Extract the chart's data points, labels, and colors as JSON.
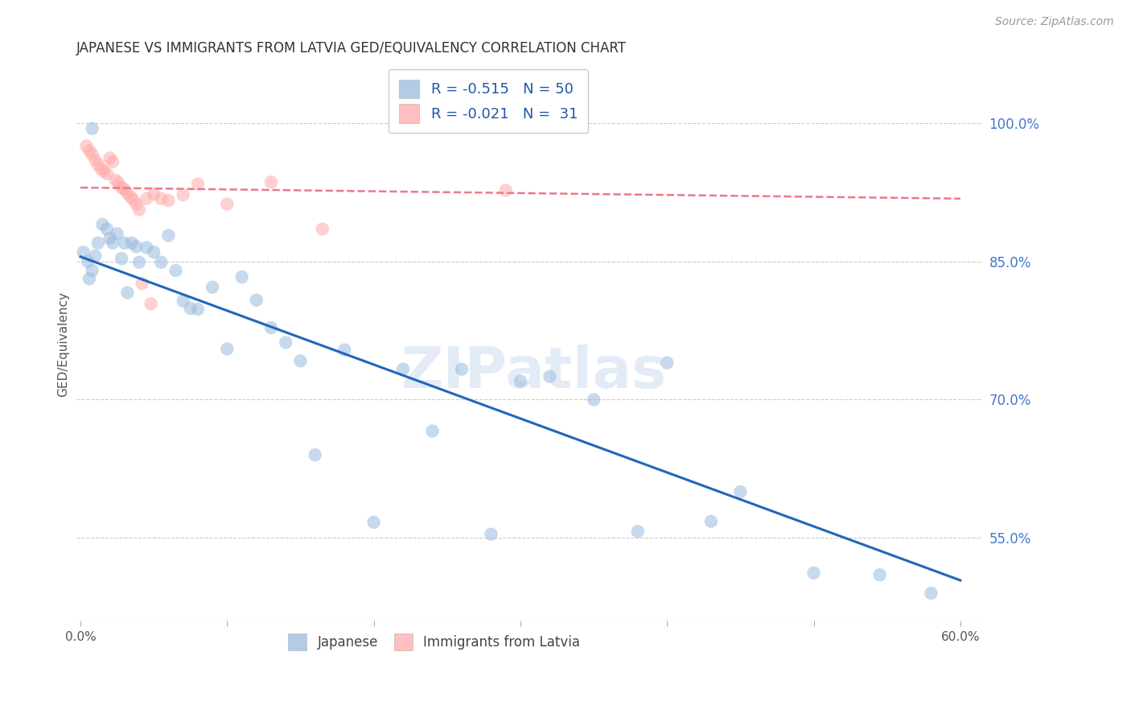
{
  "title": "JAPANESE VS IMMIGRANTS FROM LATVIA GED/EQUIVALENCY CORRELATION CHART",
  "source": "Source: ZipAtlas.com",
  "ylabel": "GED/Equivalency",
  "watermark": "ZIPatlas",
  "xlim": [
    -0.003,
    0.615
  ],
  "ylim": [
    0.46,
    1.06
  ],
  "xtick_values": [
    0.0,
    0.1,
    0.2,
    0.3,
    0.4,
    0.5,
    0.6
  ],
  "xtick_labels_show": [
    "0.0%",
    "",
    "",
    "",
    "",
    "",
    "60.0%"
  ],
  "ytick_labels_right": [
    "100.0%",
    "85.0%",
    "70.0%",
    "55.0%"
  ],
  "ytick_values_right": [
    1.0,
    0.85,
    0.7,
    0.55
  ],
  "legend_blue_label": "R = -0.515   N = 50",
  "legend_pink_label": "R = -0.021   N =  31",
  "blue_color": "#99BBDD",
  "blue_line_color": "#2266BB",
  "pink_color": "#FFAAAA",
  "pink_line_color": "#EE7788",
  "blue_scatter_x": [
    0.002,
    0.005,
    0.008,
    0.01,
    0.012,
    0.015,
    0.018,
    0.02,
    0.022,
    0.025,
    0.028,
    0.03,
    0.032,
    0.035,
    0.038,
    0.04,
    0.045,
    0.05,
    0.055,
    0.06,
    0.065,
    0.07,
    0.075,
    0.08,
    0.09,
    0.1,
    0.11,
    0.12,
    0.13,
    0.14,
    0.15,
    0.16,
    0.18,
    0.2,
    0.22,
    0.24,
    0.26,
    0.28,
    0.3,
    0.32,
    0.35,
    0.38,
    0.4,
    0.43,
    0.45,
    0.5,
    0.545,
    0.58,
    0.008,
    0.006
  ],
  "blue_scatter_y": [
    0.86,
    0.85,
    0.84,
    0.856,
    0.87,
    0.89,
    0.885,
    0.875,
    0.87,
    0.88,
    0.853,
    0.87,
    0.816,
    0.87,
    0.866,
    0.849,
    0.865,
    0.86,
    0.849,
    0.878,
    0.84,
    0.807,
    0.799,
    0.798,
    0.822,
    0.755,
    0.833,
    0.808,
    0.778,
    0.762,
    0.742,
    0.64,
    0.754,
    0.567,
    0.733,
    0.666,
    0.733,
    0.554,
    0.72,
    0.725,
    0.7,
    0.557,
    0.74,
    0.568,
    0.6,
    0.512,
    0.51,
    0.49,
    0.994,
    0.831
  ],
  "pink_scatter_x": [
    0.004,
    0.006,
    0.008,
    0.01,
    0.012,
    0.014,
    0.016,
    0.018,
    0.02,
    0.022,
    0.024,
    0.026,
    0.028,
    0.03,
    0.032,
    0.034,
    0.036,
    0.038,
    0.04,
    0.042,
    0.045,
    0.048,
    0.05,
    0.055,
    0.06,
    0.07,
    0.08,
    0.1,
    0.13,
    0.165,
    0.29
  ],
  "pink_scatter_y": [
    0.975,
    0.97,
    0.966,
    0.96,
    0.955,
    0.95,
    0.948,
    0.945,
    0.962,
    0.958,
    0.938,
    0.935,
    0.93,
    0.928,
    0.924,
    0.92,
    0.917,
    0.912,
    0.906,
    0.826,
    0.918,
    0.804,
    0.923,
    0.918,
    0.916,
    0.922,
    0.934,
    0.912,
    0.936,
    0.885,
    0.927
  ],
  "blue_trend_x": [
    0.0,
    0.6
  ],
  "blue_trend_y": [
    0.855,
    0.504
  ],
  "pink_trend_x": [
    0.0,
    0.6
  ],
  "pink_trend_y": [
    0.93,
    0.918
  ],
  "grid_color": "#CCCCCC",
  "background_color": "#FFFFFF",
  "title_fontsize": 12,
  "axis_label_fontsize": 11,
  "tick_fontsize": 11,
  "source_fontsize": 10,
  "watermark_fontsize": 52,
  "watermark_color": "#CCDDF0",
  "watermark_alpha": 0.55
}
